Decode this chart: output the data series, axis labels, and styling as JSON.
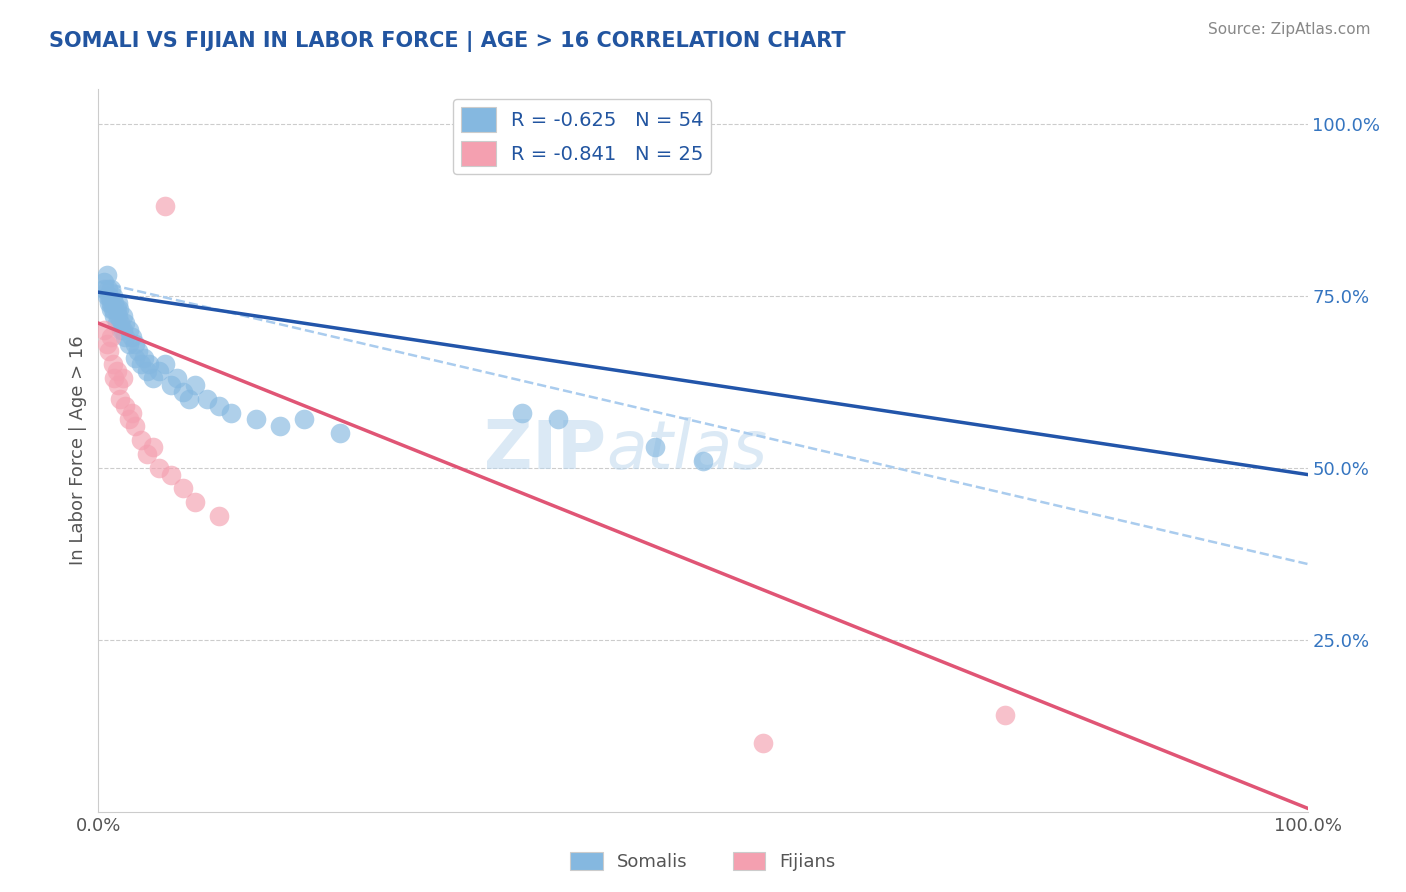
{
  "title": "SOMALI VS FIJIAN IN LABOR FORCE | AGE > 16 CORRELATION CHART",
  "source_text": "Source: ZipAtlas.com",
  "ylabel": "In Labor Force | Age > 16",
  "xlim": [
    0.0,
    1.0
  ],
  "ylim": [
    0.0,
    1.05
  ],
  "somali_R": -0.625,
  "somali_N": 54,
  "fijian_R": -0.841,
  "fijian_N": 25,
  "somali_color": "#85B8E0",
  "fijian_color": "#F4A0B0",
  "somali_line_color": "#2255AA",
  "fijian_line_color": "#E05575",
  "dashed_line_color": "#AACCEE",
  "background_color": "#FFFFFF",
  "grid_color": "#CCCCCC",
  "title_color": "#2255A0",
  "source_color": "#888888",
  "legend_text_color": "#2255A0",
  "watermark_text": "ZIPatlas",
  "blue_line_x0": 0.0,
  "blue_line_y0": 0.755,
  "blue_line_x1": 1.0,
  "blue_line_y1": 0.49,
  "pink_line_x0": 0.0,
  "pink_line_y0": 0.71,
  "pink_line_x1": 1.0,
  "pink_line_y1": 0.005,
  "dash_line_x0": 0.0,
  "dash_line_y0": 0.77,
  "dash_line_x1": 1.0,
  "dash_line_y1": 0.36,
  "somali_x": [
    0.005,
    0.005,
    0.007,
    0.007,
    0.008,
    0.009,
    0.009,
    0.01,
    0.01,
    0.01,
    0.012,
    0.012,
    0.013,
    0.013,
    0.015,
    0.015,
    0.016,
    0.016,
    0.017,
    0.018,
    0.019,
    0.02,
    0.02,
    0.022,
    0.022,
    0.025,
    0.025,
    0.028,
    0.03,
    0.03,
    0.033,
    0.035,
    0.038,
    0.04,
    0.042,
    0.045,
    0.05,
    0.055,
    0.06,
    0.065,
    0.07,
    0.075,
    0.08,
    0.09,
    0.1,
    0.11,
    0.13,
    0.15,
    0.17,
    0.2,
    0.35,
    0.38,
    0.46,
    0.5
  ],
  "somali_y": [
    0.77,
    0.76,
    0.78,
    0.75,
    0.76,
    0.74,
    0.75,
    0.76,
    0.74,
    0.73,
    0.75,
    0.73,
    0.74,
    0.72,
    0.73,
    0.71,
    0.72,
    0.74,
    0.73,
    0.71,
    0.7,
    0.72,
    0.7,
    0.71,
    0.69,
    0.7,
    0.68,
    0.69,
    0.68,
    0.66,
    0.67,
    0.65,
    0.66,
    0.64,
    0.65,
    0.63,
    0.64,
    0.65,
    0.62,
    0.63,
    0.61,
    0.6,
    0.62,
    0.6,
    0.59,
    0.58,
    0.57,
    0.56,
    0.57,
    0.55,
    0.58,
    0.57,
    0.53,
    0.51
  ],
  "fijian_x": [
    0.005,
    0.007,
    0.009,
    0.01,
    0.012,
    0.013,
    0.015,
    0.016,
    0.018,
    0.02,
    0.022,
    0.025,
    0.028,
    0.03,
    0.035,
    0.04,
    0.045,
    0.05,
    0.055,
    0.06,
    0.07,
    0.08,
    0.1,
    0.55,
    0.75
  ],
  "fijian_y": [
    0.7,
    0.68,
    0.67,
    0.69,
    0.65,
    0.63,
    0.64,
    0.62,
    0.6,
    0.63,
    0.59,
    0.57,
    0.58,
    0.56,
    0.54,
    0.52,
    0.53,
    0.5,
    0.88,
    0.49,
    0.47,
    0.45,
    0.43,
    0.1,
    0.14
  ]
}
